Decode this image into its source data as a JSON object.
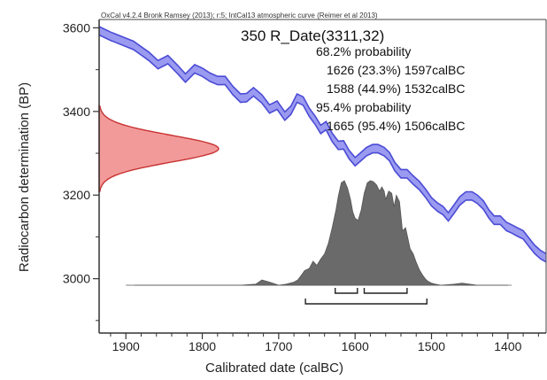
{
  "chart_data": {
    "type": "line",
    "title": "350 R_Date(3311,32)",
    "subtitle": "OxCal v4.2.4 Bronk Ramsey (2013); r:5; IntCal13 atmospheric curve (Reimer et al 2013)",
    "xlabel": "Calibrated date (calBC)",
    "ylabel": "Radiocarbon determination (BP)",
    "xlim": [
      1935,
      1350
    ],
    "ylim": [
      2870,
      3620
    ],
    "x_ticks": [
      "1900",
      "1800",
      "1700",
      "1600",
      "1500",
      "1400"
    ],
    "x_tick_values": [
      1900,
      1800,
      1700,
      1600,
      1500,
      1400
    ],
    "y_ticks": [
      "3000",
      "3200",
      "3400",
      "3600"
    ],
    "y_tick_values": [
      3000,
      3200,
      3400,
      3600
    ],
    "grid": false,
    "annotations": [
      "68.2% probability",
      "1626 (23.3%) 1597calBC",
      "1588 (44.9%) 1532calBC",
      "95.4% probability",
      "1665 (95.4%) 1506calBC"
    ],
    "calibration_curve": {
      "name": "IntCal13",
      "color": "#4b4bd6",
      "fill": "#9a9af0",
      "x": [
        1935,
        1920,
        1905,
        1890,
        1880,
        1870,
        1858,
        1845,
        1832,
        1822,
        1810,
        1800,
        1790,
        1780,
        1770,
        1760,
        1750,
        1742,
        1733,
        1722,
        1712,
        1702,
        1692,
        1684,
        1676,
        1668,
        1660,
        1652,
        1645,
        1638,
        1630,
        1622,
        1615,
        1608,
        1600,
        1593,
        1585,
        1577,
        1570,
        1562,
        1555,
        1548,
        1540,
        1532,
        1524,
        1516,
        1508,
        1500,
        1492,
        1485,
        1478,
        1471,
        1463,
        1455,
        1447,
        1440,
        1432,
        1425,
        1418,
        1410,
        1402,
        1395,
        1387,
        1380,
        1372,
        1365,
        1357,
        1350
      ],
      "y": [
        3593,
        3580,
        3569,
        3558,
        3545,
        3532,
        3512,
        3524,
        3500,
        3480,
        3502,
        3494,
        3482,
        3474,
        3474,
        3450,
        3432,
        3433,
        3447,
        3430,
        3406,
        3415,
        3389,
        3403,
        3432,
        3425,
        3398,
        3378,
        3357,
        3366,
        3338,
        3319,
        3320,
        3297,
        3280,
        3291,
        3304,
        3311,
        3311,
        3304,
        3292,
        3268,
        3251,
        3251,
        3236,
        3223,
        3205,
        3184,
        3171,
        3163,
        3148,
        3165,
        3186,
        3198,
        3198,
        3190,
        3176,
        3155,
        3140,
        3140,
        3125,
        3119,
        3111,
        3105,
        3086,
        3070,
        3057,
        3050
      ],
      "half_width_bp": 10
    },
    "radiocarbon_date": {
      "name": "R_Date",
      "mean_bp": 3311,
      "sd_bp": 32,
      "color": "#c83232",
      "fill": "#f29a9a"
    },
    "posterior": {
      "name": "calibrated probability",
      "color": "#6a6a6a",
      "x": [
        1900,
        1780,
        1750,
        1730,
        1722,
        1712,
        1700,
        1690,
        1680,
        1675,
        1670,
        1666,
        1660,
        1655,
        1650,
        1645,
        1640,
        1635,
        1630,
        1625,
        1622,
        1618,
        1614,
        1610,
        1606,
        1603,
        1600,
        1596,
        1592,
        1588,
        1584,
        1580,
        1576,
        1572,
        1568,
        1565,
        1562,
        1560,
        1556,
        1552,
        1549,
        1546,
        1542,
        1538,
        1534,
        1531,
        1528,
        1524,
        1520,
        1516,
        1512,
        1508,
        1505,
        1500,
        1495,
        1488,
        1470,
        1460,
        1440,
        1400
      ],
      "y": [
        0,
        0,
        0,
        0.01,
        0.05,
        0.03,
        0,
        0.01,
        0.03,
        0.05,
        0.1,
        0.14,
        0.16,
        0.23,
        0.19,
        0.25,
        0.3,
        0.4,
        0.55,
        0.72,
        0.85,
        0.98,
        1.0,
        0.93,
        0.82,
        0.7,
        0.64,
        0.62,
        0.72,
        0.88,
        0.98,
        1.0,
        0.99,
        0.96,
        0.9,
        0.94,
        0.9,
        0.82,
        0.9,
        0.88,
        0.75,
        0.86,
        0.8,
        0.52,
        0.55,
        0.45,
        0.35,
        0.3,
        0.22,
        0.15,
        0.1,
        0.06,
        0.04,
        0.02,
        0.01,
        0,
        0.01,
        0.02,
        0,
        0
      ]
    },
    "ranges_68": [
      [
        1626,
        1597
      ],
      [
        1588,
        1532
      ]
    ],
    "ranges_95": [
      [
        1665,
        1506
      ]
    ]
  }
}
